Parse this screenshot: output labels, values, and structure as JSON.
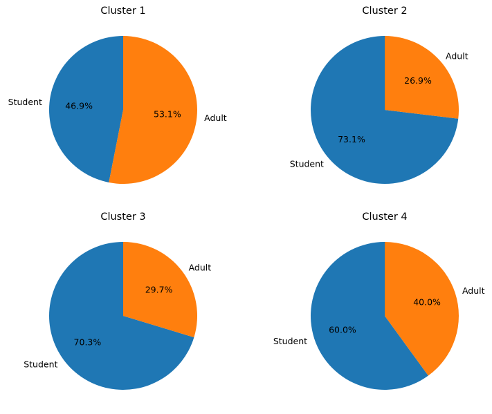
{
  "chart_data": [
    {
      "type": "pie",
      "title": "Cluster 1",
      "slices": [
        {
          "label": "Student",
          "value": 46.9,
          "pct_label": "46.9%"
        },
        {
          "label": "Adult",
          "value": 53.1,
          "pct_label": "53.1%"
        }
      ]
    },
    {
      "type": "pie",
      "title": "Cluster 2",
      "slices": [
        {
          "label": "Student",
          "value": 73.1,
          "pct_label": "73.1%"
        },
        {
          "label": "Adult",
          "value": 26.9,
          "pct_label": "26.9%"
        }
      ]
    },
    {
      "type": "pie",
      "title": "Cluster 3",
      "slices": [
        {
          "label": "Student",
          "value": 70.3,
          "pct_label": "70.3%"
        },
        {
          "label": "Adult",
          "value": 29.7,
          "pct_label": "29.7%"
        }
      ]
    },
    {
      "type": "pie",
      "title": "Cluster 4",
      "slices": [
        {
          "label": "Student",
          "value": 60.0,
          "pct_label": "60.0%"
        },
        {
          "label": "Adult",
          "value": 40.0,
          "pct_label": "40.0%"
        }
      ]
    }
  ],
  "colors": {
    "Student": "#1f77b4",
    "Adult": "#ff7f0e"
  }
}
